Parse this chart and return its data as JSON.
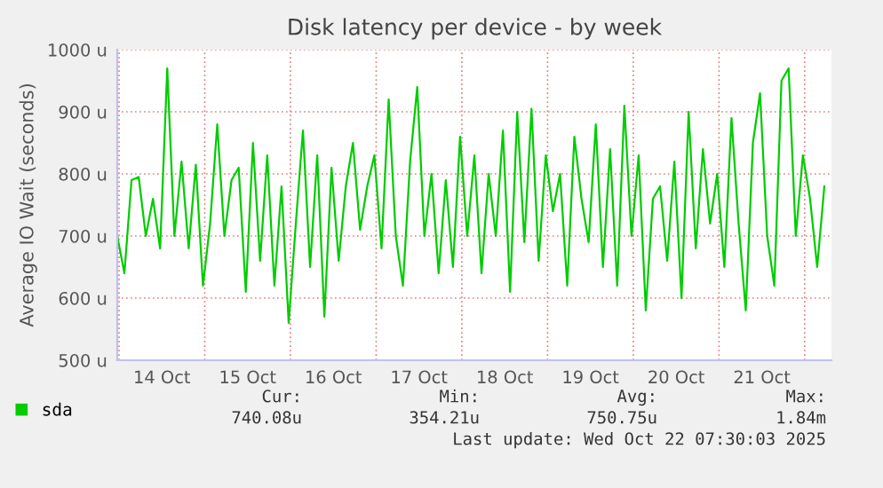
{
  "chart_data": {
    "type": "line",
    "title": "Disk latency per device - by week",
    "ylabel": "Average IO Wait (seconds)",
    "x": [
      "2025-10-13T23:30",
      "2025-10-14T01:30",
      "2025-10-14T03:30",
      "2025-10-14T05:30",
      "2025-10-14T07:30",
      "2025-10-14T09:30",
      "2025-10-14T11:30",
      "2025-10-14T13:30",
      "2025-10-14T15:30",
      "2025-10-14T17:30",
      "2025-10-14T19:30",
      "2025-10-14T21:30",
      "2025-10-14T23:30",
      "2025-10-15T01:30",
      "2025-10-15T03:30",
      "2025-10-15T05:30",
      "2025-10-15T07:30",
      "2025-10-15T09:30",
      "2025-10-15T11:30",
      "2025-10-15T13:30",
      "2025-10-15T15:30",
      "2025-10-15T17:30",
      "2025-10-15T19:30",
      "2025-10-15T21:30",
      "2025-10-15T23:30",
      "2025-10-16T01:30",
      "2025-10-16T03:30",
      "2025-10-16T05:30",
      "2025-10-16T07:30",
      "2025-10-16T09:30",
      "2025-10-16T11:30",
      "2025-10-16T13:30",
      "2025-10-16T15:30",
      "2025-10-16T17:30",
      "2025-10-16T19:30",
      "2025-10-16T21:30",
      "2025-10-16T23:30",
      "2025-10-17T01:30",
      "2025-10-17T03:30",
      "2025-10-17T05:30",
      "2025-10-17T07:30",
      "2025-10-17T09:30",
      "2025-10-17T11:30",
      "2025-10-17T13:30",
      "2025-10-17T15:30",
      "2025-10-17T17:30",
      "2025-10-17T19:30",
      "2025-10-17T21:30",
      "2025-10-17T23:30",
      "2025-10-18T01:30",
      "2025-10-18T03:30",
      "2025-10-18T05:30",
      "2025-10-18T07:30",
      "2025-10-18T09:30",
      "2025-10-18T11:30",
      "2025-10-18T13:30",
      "2025-10-18T15:30",
      "2025-10-18T17:30",
      "2025-10-18T19:30",
      "2025-10-18T21:30",
      "2025-10-18T23:30",
      "2025-10-19T01:30",
      "2025-10-19T03:30",
      "2025-10-19T05:30",
      "2025-10-19T07:30",
      "2025-10-19T09:30",
      "2025-10-19T11:30",
      "2025-10-19T13:30",
      "2025-10-19T15:30",
      "2025-10-19T17:30",
      "2025-10-19T19:30",
      "2025-10-19T21:30",
      "2025-10-19T23:30",
      "2025-10-20T01:30",
      "2025-10-20T03:30",
      "2025-10-20T05:30",
      "2025-10-20T07:30",
      "2025-10-20T09:30",
      "2025-10-20T11:30",
      "2025-10-20T13:30",
      "2025-10-20T15:30",
      "2025-10-20T17:30",
      "2025-10-20T19:30",
      "2025-10-20T21:30",
      "2025-10-20T23:30",
      "2025-10-21T01:30",
      "2025-10-21T03:30",
      "2025-10-21T05:30",
      "2025-10-21T07:30",
      "2025-10-21T09:30",
      "2025-10-21T11:30",
      "2025-10-21T13:30",
      "2025-10-21T15:30",
      "2025-10-21T17:30",
      "2025-10-21T19:30",
      "2025-10-21T21:30",
      "2025-10-21T23:30",
      "2025-10-22T01:30",
      "2025-10-22T03:30",
      "2025-10-22T05:30"
    ],
    "xlim": [
      "2025-10-13T23:30",
      "2025-10-22T07:30"
    ],
    "xticks": [
      {
        "value": "2025-10-14T12:00",
        "label": "14 Oct"
      },
      {
        "value": "2025-10-15T12:00",
        "label": "15 Oct"
      },
      {
        "value": "2025-10-16T12:00",
        "label": "16 Oct"
      },
      {
        "value": "2025-10-17T12:00",
        "label": "17 Oct"
      },
      {
        "value": "2025-10-18T12:00",
        "label": "18 Oct"
      },
      {
        "value": "2025-10-19T12:00",
        "label": "19 Oct"
      },
      {
        "value": "2025-10-20T12:00",
        "label": "20 Oct"
      },
      {
        "value": "2025-10-21T12:00",
        "label": "21 Oct"
      }
    ],
    "ylim": [
      500,
      1000
    ],
    "yticks": [
      {
        "value": 500,
        "label": "500 u"
      },
      {
        "value": 600,
        "label": "600 u"
      },
      {
        "value": 700,
        "label": "700 u"
      },
      {
        "value": 800,
        "label": "800 u"
      },
      {
        "value": 900,
        "label": "900 u"
      },
      {
        "value": 1000,
        "label": "1000 u"
      }
    ],
    "grid": true,
    "legend": "bottom",
    "marker": "none",
    "line_style": "solid",
    "series": [
      {
        "name": "sda",
        "color": "#00cc00",
        "values": [
          700,
          640,
          790,
          795,
          700,
          760,
          680,
          970,
          700,
          820,
          680,
          815,
          620,
          720,
          880,
          700,
          790,
          810,
          610,
          850,
          660,
          830,
          620,
          780,
          560,
          720,
          870,
          650,
          830,
          570,
          810,
          660,
          780,
          850,
          710,
          780,
          830,
          680,
          920,
          700,
          620,
          820,
          940,
          700,
          800,
          640,
          790,
          650,
          860,
          700,
          830,
          640,
          800,
          700,
          870,
          610,
          900,
          690,
          905,
          660,
          830,
          740,
          800,
          620,
          860,
          760,
          690,
          880,
          650,
          840,
          620,
          910,
          700,
          830,
          580,
          760,
          780,
          660,
          820,
          600,
          900,
          680,
          840,
          720,
          800,
          650,
          890,
          720,
          580,
          850,
          930,
          700,
          620,
          950,
          970,
          700,
          830,
          760,
          650,
          780
        ]
      }
    ],
    "annotations": [
      "Cur:",
      "740.08u",
      "Min:",
      "354.21u",
      "Avg:",
      "750.75u",
      "Max:",
      "1.84m",
      "Last update: Wed Oct 22 07:30:03 2025"
    ]
  }
}
